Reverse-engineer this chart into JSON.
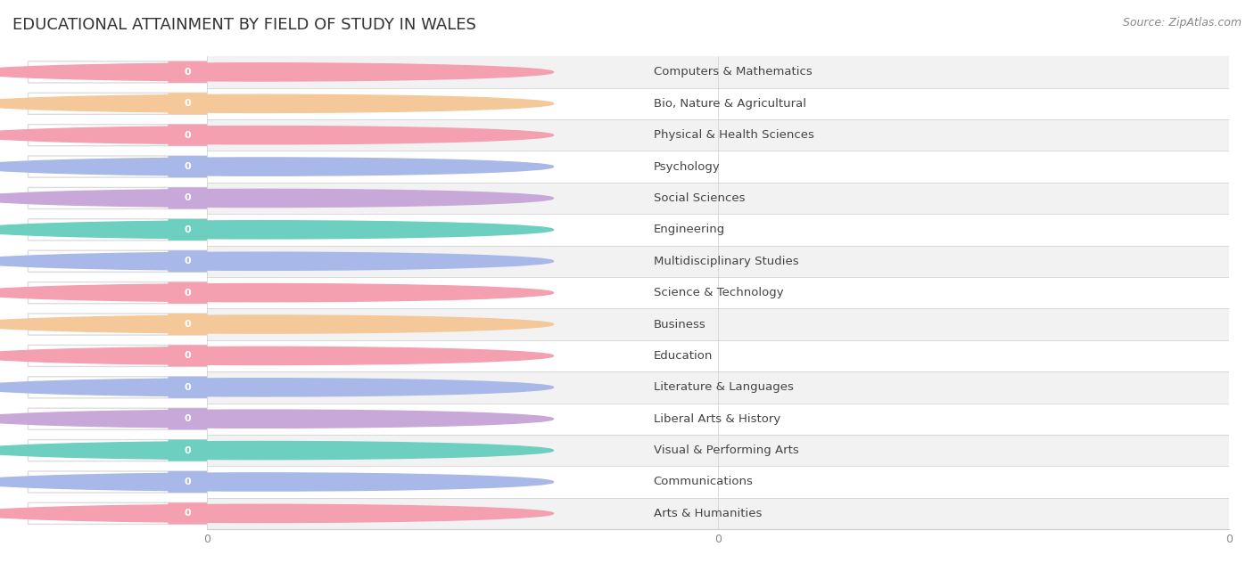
{
  "title": "EDUCATIONAL ATTAINMENT BY FIELD OF STUDY IN WALES",
  "source": "Source: ZipAtlas.com",
  "categories": [
    "Computers & Mathematics",
    "Bio, Nature & Agricultural",
    "Physical & Health Sciences",
    "Psychology",
    "Social Sciences",
    "Engineering",
    "Multidisciplinary Studies",
    "Science & Technology",
    "Business",
    "Education",
    "Literature & Languages",
    "Liberal Arts & History",
    "Visual & Performing Arts",
    "Communications",
    "Arts & Humanities"
  ],
  "values": [
    0,
    0,
    0,
    0,
    0,
    0,
    0,
    0,
    0,
    0,
    0,
    0,
    0,
    0,
    0
  ],
  "bar_colors": [
    "#F4A0B0",
    "#F5C89A",
    "#F4A0B0",
    "#A8B8E8",
    "#C8A8D8",
    "#6DCFBF",
    "#A8B8E8",
    "#F4A0B0",
    "#F5C89A",
    "#F4A0B0",
    "#A8B8E8",
    "#C8A8D8",
    "#6DCFBF",
    "#A8B8E8",
    "#F4A0B0"
  ],
  "background_color": "#ffffff",
  "row_alt_color": "#f2f2f2",
  "row_main_color": "#ffffff",
  "title_fontsize": 13,
  "label_fontsize": 9.5,
  "tick_fontsize": 9,
  "bar_height": 0.68,
  "bar_inner_color": "#ffffff",
  "value_badge_color": "#ffffff"
}
